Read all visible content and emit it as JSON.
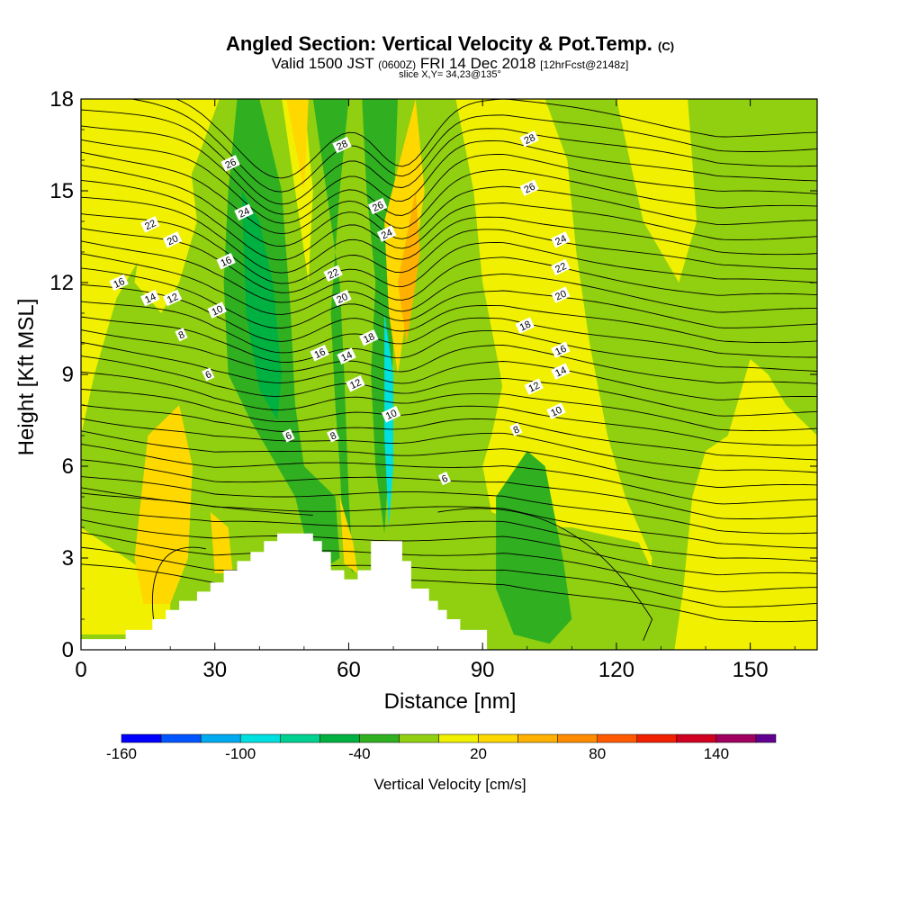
{
  "title": {
    "main": "Angled Section: Vertical Velocity & Pot.Temp.",
    "main_suffix": "(C)",
    "valid_a": "Valid 1500 JST",
    "valid_small": "(0600Z)",
    "valid_b": "FRI 14 Dec 2018",
    "valid_fcst": "[12hrFcst@2148z]",
    "slice": "slice X,Y= 34,23@135°"
  },
  "chart_data": {
    "type": "heatmap",
    "xlabel": "Distance [nm]",
    "ylabel": "Height [Kft MSL]",
    "xlim": [
      0,
      165
    ],
    "ylim": [
      0,
      18
    ],
    "x_ticks": [
      0,
      30,
      60,
      90,
      120,
      150
    ],
    "y_ticks": [
      0,
      3,
      6,
      9,
      12,
      15,
      18
    ],
    "colorbar": {
      "label": "Vertical Velocity [cm/s]",
      "tick_labels": [
        "-160",
        "-100",
        "-40",
        "20",
        "80",
        "140"
      ],
      "tick_values": [
        -160,
        -100,
        -40,
        20,
        80,
        140
      ],
      "range": [
        -160,
        170
      ],
      "bins": [
        {
          "from": -160,
          "to": -140,
          "color": "#0000ff"
        },
        {
          "from": -140,
          "to": -120,
          "color": "#0055ff"
        },
        {
          "from": -120,
          "to": -100,
          "color": "#00aaf0"
        },
        {
          "from": -100,
          "to": -80,
          "color": "#00e0e0"
        },
        {
          "from": -80,
          "to": -60,
          "color": "#00d090"
        },
        {
          "from": -60,
          "to": -40,
          "color": "#00b040"
        },
        {
          "from": -40,
          "to": -20,
          "color": "#30b020"
        },
        {
          "from": -20,
          "to": 0,
          "color": "#90d010"
        },
        {
          "from": 0,
          "to": 20,
          "color": "#f0f000"
        },
        {
          "from": 20,
          "to": 40,
          "color": "#ffd800"
        },
        {
          "from": 40,
          "to": 60,
          "color": "#ffb000"
        },
        {
          "from": 60,
          "to": 80,
          "color": "#ff8c00"
        },
        {
          "from": 80,
          "to": 100,
          "color": "#ff5a00"
        },
        {
          "from": 100,
          "to": 120,
          "color": "#f02000"
        },
        {
          "from": 120,
          "to": 140,
          "color": "#d00020"
        },
        {
          "from": 140,
          "to": 160,
          "color": "#a00060"
        },
        {
          "from": 160,
          "to": 170,
          "color": "#600090"
        }
      ]
    },
    "background_value": 0,
    "velocity_regions": [
      {
        "value": -10,
        "x": [
          [
            0,
            7
          ],
          [
            3,
            9
          ],
          [
            8,
            11.5
          ],
          [
            14,
            13
          ],
          [
            20,
            13.8
          ],
          [
            26,
            16
          ],
          [
            31,
            18
          ],
          [
            88,
            18
          ],
          [
            92,
            16
          ],
          [
            95,
            12
          ],
          [
            95,
            9
          ],
          [
            92,
            7
          ],
          [
            90,
            6
          ],
          [
            92,
            4.5
          ],
          [
            100,
            4
          ],
          [
            110,
            4
          ],
          [
            125,
            3.5
          ],
          [
            130,
            2
          ],
          [
            130,
            0
          ],
          [
            0,
            0
          ]
        ]
      },
      {
        "value": -10,
        "x": [
          [
            104,
            18
          ],
          [
            165,
            18
          ],
          [
            165,
            7
          ],
          [
            158,
            8
          ],
          [
            154,
            9
          ],
          [
            150,
            9.5
          ],
          [
            148,
            8.5
          ],
          [
            145,
            7
          ],
          [
            140,
            6.5
          ],
          [
            137,
            5
          ],
          [
            135,
            2
          ],
          [
            133,
            0
          ],
          [
            126,
            0
          ],
          [
            128,
            3
          ],
          [
            122,
            5
          ],
          [
            118,
            7
          ],
          [
            114,
            10
          ],
          [
            111,
            13
          ],
          [
            109,
            16
          ]
        ]
      },
      {
        "value": -30,
        "x": [
          [
            35,
            18
          ],
          [
            40,
            18
          ],
          [
            45,
            15
          ],
          [
            47,
            11
          ],
          [
            48,
            8
          ],
          [
            50,
            6
          ],
          [
            57,
            5
          ],
          [
            58,
            3
          ],
          [
            53,
            2.5
          ],
          [
            50,
            3.8
          ],
          [
            48,
            5
          ],
          [
            44,
            6
          ],
          [
            38,
            7.5
          ],
          [
            33,
            9
          ],
          [
            32,
            12
          ],
          [
            33,
            15
          ]
        ]
      },
      {
        "value": -30,
        "x": [
          [
            52,
            18
          ],
          [
            60,
            18
          ],
          [
            58,
            15
          ],
          [
            56,
            11
          ],
          [
            57,
            8
          ],
          [
            58,
            6
          ],
          [
            59,
            3
          ],
          [
            61,
            2.5
          ],
          [
            60,
            5
          ],
          [
            59,
            9
          ],
          [
            58,
            12
          ],
          [
            55,
            15
          ]
        ]
      },
      {
        "value": -30,
        "x": [
          [
            63,
            18
          ],
          [
            71,
            18
          ],
          [
            70,
            14
          ],
          [
            70,
            10
          ],
          [
            69,
            6
          ],
          [
            68,
            3.8
          ],
          [
            66,
            6
          ],
          [
            65,
            9
          ],
          [
            66,
            12
          ],
          [
            64,
            15
          ]
        ]
      },
      {
        "value": -30,
        "x": [
          [
            93,
            5
          ],
          [
            100,
            6.5
          ],
          [
            104,
            6
          ],
          [
            108,
            3
          ],
          [
            110,
            1
          ],
          [
            105,
            0.2
          ],
          [
            97,
            0.5
          ],
          [
            93,
            2
          ]
        ]
      },
      {
        "value": -50,
        "x": [
          [
            36,
            15
          ],
          [
            40,
            14
          ],
          [
            43,
            12
          ],
          [
            45,
            9
          ],
          [
            44,
            7.5
          ],
          [
            40,
            8.5
          ],
          [
            37,
            11
          ]
        ]
      },
      {
        "value": -90,
        "x": [
          [
            68,
            11
          ],
          [
            70,
            9
          ],
          [
            70,
            6
          ],
          [
            69,
            4
          ],
          [
            68,
            7
          ]
        ]
      },
      {
        "value": 10,
        "x": [
          [
            18,
            16
          ],
          [
            24,
            16.5
          ],
          [
            26,
            14
          ],
          [
            22,
            12
          ],
          [
            18,
            11
          ],
          [
            12,
            12
          ],
          [
            14,
            14
          ]
        ]
      },
      {
        "value": 10,
        "x": [
          [
            84,
            18
          ],
          [
            104,
            18
          ],
          [
            103,
            14
          ],
          [
            100,
            10
          ],
          [
            96,
            7
          ],
          [
            94,
            9
          ],
          [
            90,
            12
          ],
          [
            88,
            15
          ]
        ]
      },
      {
        "value": 10,
        "x": [
          [
            0,
            4
          ],
          [
            10,
            3
          ],
          [
            20,
            2
          ],
          [
            20,
            0.5
          ],
          [
            10,
            0.5
          ],
          [
            0,
            0.5
          ]
        ]
      },
      {
        "value": 10,
        "x": [
          [
            45,
            18
          ],
          [
            50,
            18
          ],
          [
            52,
            15
          ],
          [
            51,
            12
          ],
          [
            48,
            15
          ]
        ]
      },
      {
        "value": 10,
        "x": [
          [
            120,
            18
          ],
          [
            136,
            18
          ],
          [
            138,
            14
          ],
          [
            134,
            12
          ],
          [
            126,
            14
          ]
        ]
      },
      {
        "value": 30,
        "x": [
          [
            15,
            7
          ],
          [
            22,
            8
          ],
          [
            25,
            6
          ],
          [
            24,
            3
          ],
          [
            20,
            1.5
          ],
          [
            14,
            1.5
          ],
          [
            12,
            3
          ]
        ]
      },
      {
        "value": 30,
        "x": [
          [
            29,
            4.5
          ],
          [
            33,
            4
          ],
          [
            34,
            2.5
          ],
          [
            30,
            2.5
          ]
        ]
      },
      {
        "value": 30,
        "x": [
          [
            68,
            14
          ],
          [
            75,
            18
          ],
          [
            77,
            15
          ],
          [
            74,
            12
          ],
          [
            71,
            9
          ],
          [
            69,
            11
          ]
        ]
      },
      {
        "value": 30,
        "x": [
          [
            46,
            18
          ],
          [
            51,
            18
          ],
          [
            50,
            15
          ],
          [
            48,
            16.5
          ]
        ]
      },
      {
        "value": 30,
        "x": [
          [
            58,
            5
          ],
          [
            61,
            3.5
          ],
          [
            62,
            2.5
          ],
          [
            59,
            2.8
          ]
        ]
      },
      {
        "value": 50,
        "x": [
          [
            71,
            12
          ],
          [
            75,
            15
          ],
          [
            76,
            13
          ],
          [
            73,
            10
          ]
        ]
      }
    ],
    "theta_contours": [
      {
        "value": 6,
        "label_at": [
          52,
          7.0
        ]
      },
      {
        "value": 8,
        "label_at": [
          106,
          7.2
        ]
      },
      {
        "value": 10,
        "label_at": [
          114,
          7.8
        ]
      },
      {
        "value": 12,
        "label_at": [
          103,
          8.5
        ]
      },
      {
        "value": 14,
        "label_at": [
          118,
          9.0
        ]
      },
      {
        "value": 16,
        "label_at": [
          118,
          9.8
        ]
      },
      {
        "value": 18,
        "label_at": [
          99,
          10.6
        ]
      },
      {
        "value": 20,
        "label_at": [
          113,
          11.5
        ]
      },
      {
        "value": 22,
        "label_at": [
          113,
          12.4
        ]
      },
      {
        "value": 24,
        "label_at": [
          113,
          13.3
        ]
      },
      {
        "value": 26,
        "label_at": [
          102,
          15.1
        ]
      },
      {
        "value": 28,
        "label_at": [
          102,
          16.7
        ]
      }
    ],
    "contour_labels": [
      {
        "text": "6",
        "x": 28.5,
        "y": 9.0
      },
      {
        "text": "6",
        "x": 46.5,
        "y": 7.0
      },
      {
        "text": "6",
        "x": 81.5,
        "y": 5.6
      },
      {
        "text": "8",
        "x": 22.5,
        "y": 10.3
      },
      {
        "text": "8",
        "x": 56.5,
        "y": 7.0
      },
      {
        "text": "8",
        "x": 97.5,
        "y": 7.2
      },
      {
        "text": "10",
        "x": 30.5,
        "y": 11.1
      },
      {
        "text": "10",
        "x": 69.5,
        "y": 7.7
      },
      {
        "text": "10",
        "x": 106.5,
        "y": 7.8
      },
      {
        "text": "12",
        "x": 20.5,
        "y": 11.5
      },
      {
        "text": "12",
        "x": 61.5,
        "y": 8.7
      },
      {
        "text": "12",
        "x": 101.5,
        "y": 8.6
      },
      {
        "text": "14",
        "x": 15.5,
        "y": 11.5
      },
      {
        "text": "14",
        "x": 59.5,
        "y": 9.6
      },
      {
        "text": "14",
        "x": 107.5,
        "y": 9.1
      },
      {
        "text": "16",
        "x": 8.5,
        "y": 12.0
      },
      {
        "text": "16",
        "x": 53.5,
        "y": 9.7
      },
      {
        "text": "16",
        "x": 32.5,
        "y": 12.7
      },
      {
        "text": "16",
        "x": 107.5,
        "y": 9.8
      },
      {
        "text": "18",
        "x": 64.5,
        "y": 10.2
      },
      {
        "text": "18",
        "x": 99.5,
        "y": 10.6
      },
      {
        "text": "20",
        "x": 20.5,
        "y": 13.4
      },
      {
        "text": "20",
        "x": 58.5,
        "y": 11.5
      },
      {
        "text": "20",
        "x": 107.5,
        "y": 11.6
      },
      {
        "text": "22",
        "x": 15.5,
        "y": 13.9
      },
      {
        "text": "22",
        "x": 56.5,
        "y": 12.3
      },
      {
        "text": "22",
        "x": 107.5,
        "y": 12.5
      },
      {
        "text": "24",
        "x": 36.5,
        "y": 14.3
      },
      {
        "text": "24",
        "x": 68.5,
        "y": 13.6
      },
      {
        "text": "24",
        "x": 107.5,
        "y": 13.4
      },
      {
        "text": "26",
        "x": 33.5,
        "y": 15.9
      },
      {
        "text": "26",
        "x": 66.5,
        "y": 14.5
      },
      {
        "text": "26",
        "x": 100.5,
        "y": 15.1
      },
      {
        "text": "28",
        "x": 58.5,
        "y": 16.5
      },
      {
        "text": "28",
        "x": 100.5,
        "y": 16.7
      }
    ],
    "terrain_profile": [
      [
        0,
        0.35
      ],
      [
        10,
        0.35
      ],
      [
        10,
        0.65
      ],
      [
        16,
        0.65
      ],
      [
        16,
        1.0
      ],
      [
        19,
        1.0
      ],
      [
        19,
        1.3
      ],
      [
        22,
        1.3
      ],
      [
        22,
        1.6
      ],
      [
        26,
        1.6
      ],
      [
        26,
        1.9
      ],
      [
        29,
        1.9
      ],
      [
        29,
        2.2
      ],
      [
        32,
        2.2
      ],
      [
        32,
        2.6
      ],
      [
        35,
        2.6
      ],
      [
        35,
        2.9
      ],
      [
        38,
        2.9
      ],
      [
        38,
        3.2
      ],
      [
        41,
        3.2
      ],
      [
        41,
        3.55
      ],
      [
        44,
        3.55
      ],
      [
        44,
        3.8
      ],
      [
        52,
        3.8
      ],
      [
        52,
        3.55
      ],
      [
        54,
        3.55
      ],
      [
        54,
        3.2
      ],
      [
        56,
        3.2
      ],
      [
        56,
        2.6
      ],
      [
        59,
        2.6
      ],
      [
        59,
        2.3
      ],
      [
        62,
        2.3
      ],
      [
        62,
        2.6
      ],
      [
        65,
        2.6
      ],
      [
        65,
        3.55
      ],
      [
        72,
        3.55
      ],
      [
        72,
        2.9
      ],
      [
        74,
        2.9
      ],
      [
        74,
        2.0
      ],
      [
        78,
        2.0
      ],
      [
        78,
        1.6
      ],
      [
        80,
        1.6
      ],
      [
        80,
        1.3
      ],
      [
        82,
        1.3
      ],
      [
        82,
        1.0
      ],
      [
        85,
        1.0
      ],
      [
        85,
        0.65
      ],
      [
        91,
        0.65
      ],
      [
        91,
        0
      ],
      [
        0,
        0
      ]
    ]
  }
}
